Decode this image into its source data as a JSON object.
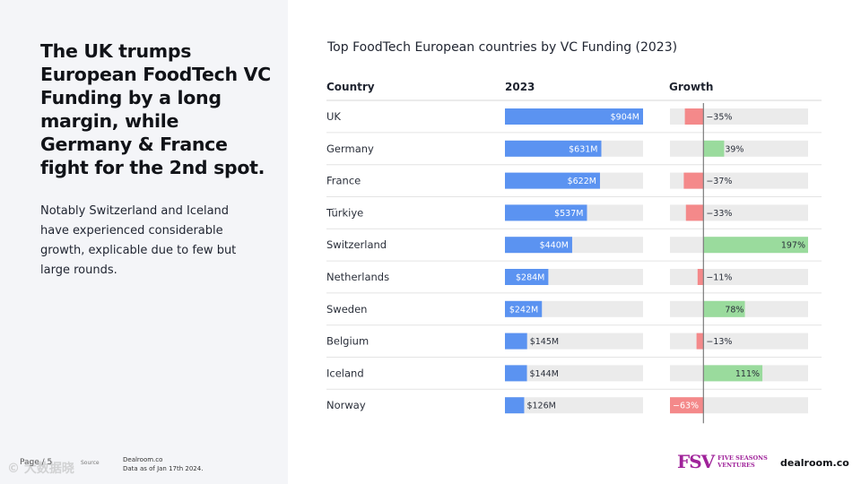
{
  "headline": "The UK trumps European FoodTech VC Funding by a long margin, while Germany & France fight for the 2nd spot.",
  "body_text": "Notably Switzerland and Iceland have experienced considerable growth, explicable due to few but large rounds.",
  "footer": {
    "page": "Page / 5",
    "source_label": "Source",
    "credit_line1": "Dealroom.co",
    "credit_line2": "Data as of Jan 17th 2024."
  },
  "logos": {
    "fsv_mark": "FSV",
    "fsv_line1": "FIVE SEASONS",
    "fsv_line2": "VENTURES",
    "dealroom": "dealroom.co"
  },
  "watermark": "© 大数据晓",
  "colors": {
    "funding_bar": "#5b93f1",
    "bar_track": "#ebebeb",
    "growth_positive": "#9adb9d",
    "growth_negative": "#f4898a",
    "zero_line": "#7b7b7b"
  },
  "chart_data": {
    "type": "table",
    "title": "Top FoodTech European countries by VC Funding (2023)",
    "columns": [
      "Country",
      "2023",
      "Growth"
    ],
    "funding_unit": "$M",
    "growth_unit": "%",
    "funding_range": [
      0,
      904
    ],
    "growth_range": [
      -63,
      197
    ],
    "rows": [
      {
        "country": "UK",
        "funding": 904,
        "funding_label": "$904M",
        "growth": -35,
        "growth_label": "−35%"
      },
      {
        "country": "Germany",
        "funding": 631,
        "funding_label": "$631M",
        "growth": 39,
        "growth_label": "39%"
      },
      {
        "country": "France",
        "funding": 622,
        "funding_label": "$622M",
        "growth": -37,
        "growth_label": "−37%"
      },
      {
        "country": "Türkiye",
        "funding": 537,
        "funding_label": "$537M",
        "growth": -33,
        "growth_label": "−33%"
      },
      {
        "country": "Switzerland",
        "funding": 440,
        "funding_label": "$440M",
        "growth": 197,
        "growth_label": "197%"
      },
      {
        "country": "Netherlands",
        "funding": 284,
        "funding_label": "$284M",
        "growth": -11,
        "growth_label": "−11%"
      },
      {
        "country": "Sweden",
        "funding": 242,
        "funding_label": "$242M",
        "growth": 78,
        "growth_label": "78%"
      },
      {
        "country": "Belgium",
        "funding": 145,
        "funding_label": "$145M",
        "growth": -13,
        "growth_label": "−13%"
      },
      {
        "country": "Iceland",
        "funding": 144,
        "funding_label": "$144M",
        "growth": 111,
        "growth_label": "111%"
      },
      {
        "country": "Norway",
        "funding": 126,
        "funding_label": "$126M",
        "growth": -63,
        "growth_label": "−63%"
      }
    ]
  }
}
